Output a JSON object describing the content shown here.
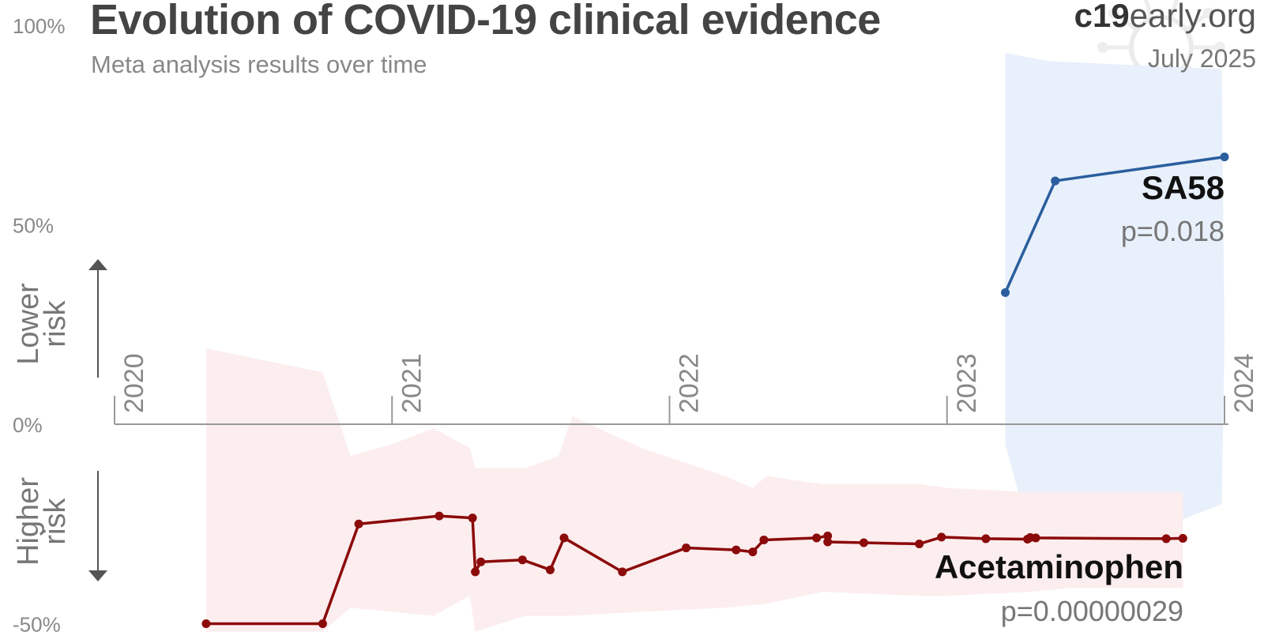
{
  "header": {
    "title": "Evolution of COVID-19 clinical evidence",
    "subtitle": "Meta analysis results over time",
    "brand_bold": "c19",
    "brand_rest": "early.org",
    "date": "July 2025"
  },
  "risk_labels": {
    "lower": [
      "Lower",
      "risk"
    ],
    "higher": [
      "Higher",
      "risk"
    ]
  },
  "colors": {
    "sa58_line": "#2a5e9e",
    "sa58_band": "#e8f0fb",
    "acet_line": "#8b0a0a",
    "acet_band": "#fcedee",
    "axis": "#999999",
    "tick_text": "#888888"
  },
  "chart_data": {
    "type": "line",
    "title": "Evolution of COVID-19 clinical evidence",
    "subtitle": "Meta analysis results over time",
    "xlim": [
      2020.0,
      2024.0
    ],
    "ylim": [
      -50,
      100
    ],
    "x_ticks": [
      "2020",
      "2021",
      "2022",
      "2023",
      "2024"
    ],
    "y_ticks": [
      "100%",
      "50%",
      "0%",
      "-50%"
    ],
    "grid": false,
    "series": [
      {
        "name": "SA58",
        "label_p": "p=0.018",
        "color": "#2a5e9e",
        "x": [
          2023.21,
          2023.39,
          2024.0
        ],
        "y": [
          33,
          61,
          67
        ],
        "band_upper": [
          93,
          91,
          89,
          21
        ],
        "band_upper_x": [
          2023.21,
          2023.37,
          2023.99,
          2024.0
        ],
        "band_lower": [
          -5,
          -28,
          -37,
          -20
        ],
        "band_lower_x": [
          2023.21,
          2023.3,
          2023.37,
          2023.99
        ]
      },
      {
        "name": "Acetaminophen",
        "label_p": "p=0.00000029",
        "color": "#8b0a0a",
        "x": [
          2020.33,
          2020.75,
          2020.88,
          2021.17,
          2021.29,
          2021.3,
          2021.32,
          2021.47,
          2021.57,
          2021.62,
          2021.83,
          2022.06,
          2022.24,
          2022.3,
          2022.34,
          2022.53,
          2022.57,
          2022.57,
          2022.7,
          2022.9,
          2022.98,
          2023.14,
          2023.29,
          2023.3,
          2023.32,
          2023.79,
          2023.85
        ],
        "y": [
          -50,
          -50,
          -25,
          -23,
          -23.5,
          -37,
          -34.5,
          -34,
          -36.5,
          -28.5,
          -37,
          -31,
          -31.5,
          -32,
          -29,
          -28.5,
          -28,
          -29.5,
          -29.7,
          -30,
          -28.3,
          -28.7,
          -28.8,
          -28.4,
          -28.5,
          -28.7,
          -28.6
        ],
        "band_upper_x": [
          2020.33,
          2020.75,
          2020.85,
          2021.0,
          2021.15,
          2021.28,
          2021.3,
          2021.48,
          2021.6,
          2021.65,
          2021.9,
          2022.2,
          2022.3,
          2022.35,
          2022.55,
          2022.9,
          2023.0,
          2023.3,
          2023.45,
          2023.85
        ],
        "band_upper": [
          19,
          13,
          -8,
          -5,
          -1,
          -6,
          -11,
          -11,
          -8,
          2,
          -6,
          -13,
          -16,
          -13,
          -15,
          -15,
          -16,
          -17,
          -17,
          -17
        ],
        "band_lower_x": [
          2023.85,
          2023.45,
          2023.3,
          2023.0,
          2022.9,
          2022.55,
          2022.35,
          2022.2,
          2021.9,
          2021.65,
          2021.6,
          2021.48,
          2021.3,
          2021.28,
          2021.15,
          2020.85,
          2020.75,
          2020.33
        ],
        "band_lower": [
          -41,
          -41,
          -42,
          -43,
          -43,
          -42,
          -45,
          -46,
          -47,
          -48,
          -48,
          -48,
          -52,
          -43,
          -48,
          -46,
          -52,
          -52
        ]
      }
    ]
  }
}
